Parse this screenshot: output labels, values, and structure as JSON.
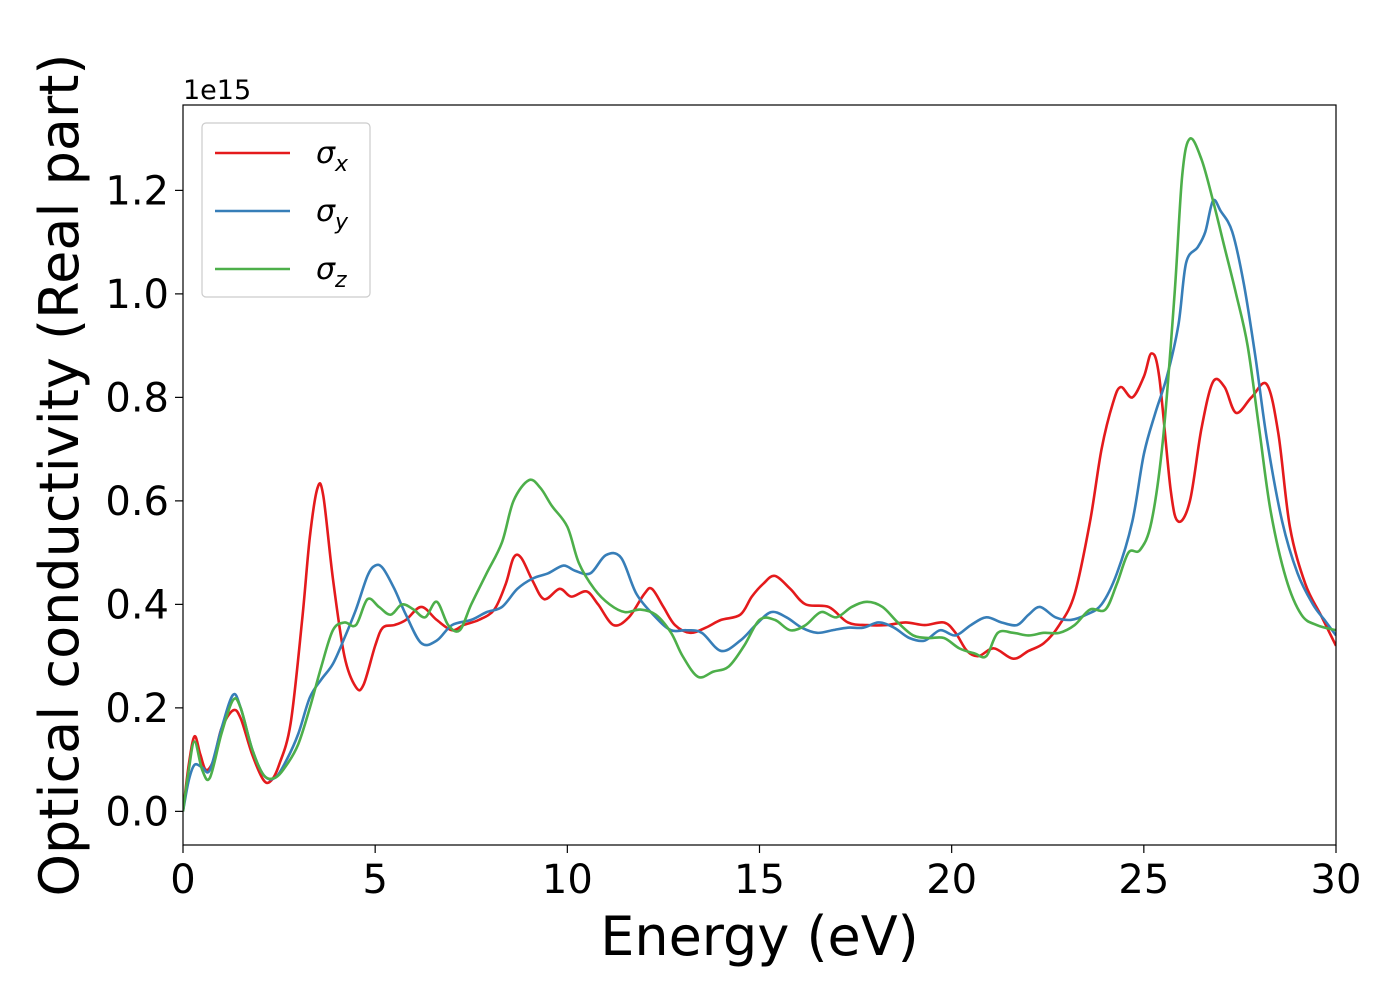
{
  "chart_data": {
    "type": "line",
    "xlabel": "Energy (eV)",
    "ylabel": "Optical conductivity (Real part)",
    "y_offset_label": "1e15",
    "xlim": [
      0,
      30
    ],
    "ylim": [
      -0.065,
      1.365
    ],
    "x_ticks": [
      0,
      5,
      10,
      15,
      20,
      25,
      30
    ],
    "x_tick_labels": [
      "0",
      "5",
      "10",
      "15",
      "20",
      "25",
      "30"
    ],
    "y_ticks": [
      0.0,
      0.2,
      0.4,
      0.6,
      0.8,
      1.0,
      1.2
    ],
    "y_tick_labels": [
      "0.0",
      "0.2",
      "0.4",
      "0.6",
      "0.8",
      "1.0",
      "1.2"
    ],
    "grid": false,
    "legend_position": "top-left",
    "series": [
      {
        "name": "σx",
        "legend_base": "σ",
        "legend_sub": "x",
        "color": "#e41a1c",
        "points": [
          [
            0,
            0
          ],
          [
            0.15,
            0.09
          ],
          [
            0.3,
            0.145
          ],
          [
            0.45,
            0.11
          ],
          [
            0.6,
            0.08
          ],
          [
            0.8,
            0.1
          ],
          [
            1.0,
            0.16
          ],
          [
            1.3,
            0.195
          ],
          [
            1.5,
            0.18
          ],
          [
            1.8,
            0.11
          ],
          [
            2.1,
            0.06
          ],
          [
            2.3,
            0.06
          ],
          [
            2.5,
            0.09
          ],
          [
            2.8,
            0.17
          ],
          [
            3.1,
            0.37
          ],
          [
            3.3,
            0.53
          ],
          [
            3.5,
            0.625
          ],
          [
            3.65,
            0.61
          ],
          [
            3.9,
            0.45
          ],
          [
            4.2,
            0.3
          ],
          [
            4.5,
            0.24
          ],
          [
            4.7,
            0.245
          ],
          [
            5.0,
            0.32
          ],
          [
            5.2,
            0.355
          ],
          [
            5.5,
            0.36
          ],
          [
            5.8,
            0.37
          ],
          [
            6.2,
            0.395
          ],
          [
            6.6,
            0.37
          ],
          [
            7.0,
            0.35
          ],
          [
            7.3,
            0.36
          ],
          [
            7.7,
            0.37
          ],
          [
            8.1,
            0.39
          ],
          [
            8.4,
            0.44
          ],
          [
            8.6,
            0.49
          ],
          [
            8.8,
            0.49
          ],
          [
            9.1,
            0.445
          ],
          [
            9.4,
            0.41
          ],
          [
            9.8,
            0.43
          ],
          [
            10.1,
            0.415
          ],
          [
            10.5,
            0.425
          ],
          [
            10.8,
            0.4
          ],
          [
            11.2,
            0.36
          ],
          [
            11.6,
            0.375
          ],
          [
            12.0,
            0.42
          ],
          [
            12.2,
            0.43
          ],
          [
            12.5,
            0.395
          ],
          [
            12.8,
            0.36
          ],
          [
            13.2,
            0.345
          ],
          [
            13.6,
            0.355
          ],
          [
            14.0,
            0.37
          ],
          [
            14.5,
            0.38
          ],
          [
            14.8,
            0.415
          ],
          [
            15.1,
            0.44
          ],
          [
            15.4,
            0.455
          ],
          [
            15.8,
            0.43
          ],
          [
            16.2,
            0.4
          ],
          [
            16.8,
            0.395
          ],
          [
            17.3,
            0.365
          ],
          [
            17.8,
            0.36
          ],
          [
            18.3,
            0.36
          ],
          [
            18.8,
            0.365
          ],
          [
            19.3,
            0.36
          ],
          [
            19.8,
            0.365
          ],
          [
            20.1,
            0.345
          ],
          [
            20.4,
            0.31
          ],
          [
            20.7,
            0.3
          ],
          [
            21.1,
            0.315
          ],
          [
            21.6,
            0.295
          ],
          [
            22.0,
            0.31
          ],
          [
            22.4,
            0.325
          ],
          [
            22.8,
            0.36
          ],
          [
            23.2,
            0.42
          ],
          [
            23.6,
            0.56
          ],
          [
            23.9,
            0.7
          ],
          [
            24.2,
            0.79
          ],
          [
            24.4,
            0.82
          ],
          [
            24.7,
            0.8
          ],
          [
            25.0,
            0.84
          ],
          [
            25.2,
            0.885
          ],
          [
            25.4,
            0.84
          ],
          [
            25.7,
            0.62
          ],
          [
            25.9,
            0.56
          ],
          [
            26.2,
            0.6
          ],
          [
            26.5,
            0.74
          ],
          [
            26.8,
            0.83
          ],
          [
            27.1,
            0.82
          ],
          [
            27.4,
            0.77
          ],
          [
            27.8,
            0.8
          ],
          [
            28.2,
            0.825
          ],
          [
            28.5,
            0.73
          ],
          [
            28.8,
            0.55
          ],
          [
            29.2,
            0.44
          ],
          [
            29.6,
            0.38
          ],
          [
            30.0,
            0.32
          ]
        ]
      },
      {
        "name": "σy",
        "legend_base": "σ",
        "legend_sub": "y",
        "color": "#377eb8",
        "points": [
          [
            0,
            0
          ],
          [
            0.15,
            0.06
          ],
          [
            0.3,
            0.09
          ],
          [
            0.5,
            0.085
          ],
          [
            0.7,
            0.08
          ],
          [
            1.0,
            0.16
          ],
          [
            1.3,
            0.225
          ],
          [
            1.5,
            0.2
          ],
          [
            1.8,
            0.12
          ],
          [
            2.1,
            0.07
          ],
          [
            2.4,
            0.065
          ],
          [
            2.7,
            0.1
          ],
          [
            3.0,
            0.15
          ],
          [
            3.3,
            0.22
          ],
          [
            3.6,
            0.255
          ],
          [
            3.9,
            0.285
          ],
          [
            4.2,
            0.335
          ],
          [
            4.5,
            0.39
          ],
          [
            4.8,
            0.455
          ],
          [
            5.0,
            0.475
          ],
          [
            5.2,
            0.47
          ],
          [
            5.5,
            0.43
          ],
          [
            5.8,
            0.38
          ],
          [
            6.2,
            0.325
          ],
          [
            6.6,
            0.33
          ],
          [
            7.0,
            0.36
          ],
          [
            7.5,
            0.37
          ],
          [
            7.9,
            0.385
          ],
          [
            8.3,
            0.395
          ],
          [
            8.7,
            0.43
          ],
          [
            9.1,
            0.45
          ],
          [
            9.5,
            0.46
          ],
          [
            9.9,
            0.475
          ],
          [
            10.2,
            0.465
          ],
          [
            10.6,
            0.46
          ],
          [
            11.0,
            0.495
          ],
          [
            11.4,
            0.49
          ],
          [
            11.8,
            0.42
          ],
          [
            12.3,
            0.375
          ],
          [
            12.7,
            0.35
          ],
          [
            13.1,
            0.35
          ],
          [
            13.5,
            0.345
          ],
          [
            14.0,
            0.31
          ],
          [
            14.5,
            0.33
          ],
          [
            14.9,
            0.36
          ],
          [
            15.3,
            0.385
          ],
          [
            15.7,
            0.375
          ],
          [
            16.1,
            0.355
          ],
          [
            16.5,
            0.345
          ],
          [
            16.9,
            0.35
          ],
          [
            17.3,
            0.355
          ],
          [
            17.7,
            0.355
          ],
          [
            18.1,
            0.365
          ],
          [
            18.5,
            0.355
          ],
          [
            18.9,
            0.335
          ],
          [
            19.3,
            0.33
          ],
          [
            19.7,
            0.35
          ],
          [
            20.1,
            0.34
          ],
          [
            20.5,
            0.36
          ],
          [
            20.9,
            0.375
          ],
          [
            21.3,
            0.365
          ],
          [
            21.7,
            0.36
          ],
          [
            22.0,
            0.38
          ],
          [
            22.3,
            0.395
          ],
          [
            22.7,
            0.375
          ],
          [
            23.1,
            0.37
          ],
          [
            23.5,
            0.38
          ],
          [
            23.9,
            0.4
          ],
          [
            24.3,
            0.46
          ],
          [
            24.7,
            0.56
          ],
          [
            25.0,
            0.69
          ],
          [
            25.3,
            0.77
          ],
          [
            25.6,
            0.84
          ],
          [
            25.9,
            0.94
          ],
          [
            26.1,
            1.06
          ],
          [
            26.4,
            1.09
          ],
          [
            26.6,
            1.12
          ],
          [
            26.8,
            1.18
          ],
          [
            27.0,
            1.16
          ],
          [
            27.3,
            1.12
          ],
          [
            27.6,
            1.02
          ],
          [
            27.9,
            0.88
          ],
          [
            28.2,
            0.72
          ],
          [
            28.6,
            0.56
          ],
          [
            29.0,
            0.46
          ],
          [
            29.4,
            0.4
          ],
          [
            29.7,
            0.37
          ],
          [
            30.0,
            0.34
          ]
        ]
      },
      {
        "name": "σz",
        "legend_base": "σ",
        "legend_sub": "z",
        "color": "#4daf4a",
        "points": [
          [
            0,
            0
          ],
          [
            0.15,
            0.08
          ],
          [
            0.3,
            0.135
          ],
          [
            0.5,
            0.08
          ],
          [
            0.7,
            0.065
          ],
          [
            1.0,
            0.15
          ],
          [
            1.3,
            0.215
          ],
          [
            1.5,
            0.2
          ],
          [
            1.8,
            0.12
          ],
          [
            2.1,
            0.07
          ],
          [
            2.4,
            0.065
          ],
          [
            2.7,
            0.09
          ],
          [
            3.0,
            0.13
          ],
          [
            3.3,
            0.2
          ],
          [
            3.6,
            0.28
          ],
          [
            3.9,
            0.35
          ],
          [
            4.2,
            0.365
          ],
          [
            4.5,
            0.36
          ],
          [
            4.8,
            0.41
          ],
          [
            5.1,
            0.395
          ],
          [
            5.4,
            0.38
          ],
          [
            5.7,
            0.4
          ],
          [
            6.0,
            0.39
          ],
          [
            6.3,
            0.375
          ],
          [
            6.6,
            0.405
          ],
          [
            6.9,
            0.36
          ],
          [
            7.2,
            0.35
          ],
          [
            7.5,
            0.4
          ],
          [
            7.9,
            0.46
          ],
          [
            8.3,
            0.52
          ],
          [
            8.6,
            0.6
          ],
          [
            9.0,
            0.64
          ],
          [
            9.3,
            0.625
          ],
          [
            9.6,
            0.59
          ],
          [
            10.0,
            0.55
          ],
          [
            10.3,
            0.48
          ],
          [
            10.7,
            0.43
          ],
          [
            11.1,
            0.4
          ],
          [
            11.5,
            0.385
          ],
          [
            11.9,
            0.39
          ],
          [
            12.3,
            0.38
          ],
          [
            12.7,
            0.345
          ],
          [
            13.0,
            0.3
          ],
          [
            13.4,
            0.26
          ],
          [
            13.8,
            0.27
          ],
          [
            14.2,
            0.28
          ],
          [
            14.6,
            0.32
          ],
          [
            15.0,
            0.37
          ],
          [
            15.4,
            0.37
          ],
          [
            15.8,
            0.35
          ],
          [
            16.2,
            0.36
          ],
          [
            16.6,
            0.385
          ],
          [
            17.0,
            0.375
          ],
          [
            17.4,
            0.395
          ],
          [
            17.8,
            0.405
          ],
          [
            18.2,
            0.395
          ],
          [
            18.6,
            0.365
          ],
          [
            19.0,
            0.34
          ],
          [
            19.4,
            0.335
          ],
          [
            19.8,
            0.335
          ],
          [
            20.2,
            0.315
          ],
          [
            20.6,
            0.305
          ],
          [
            20.9,
            0.3
          ],
          [
            21.2,
            0.345
          ],
          [
            21.6,
            0.345
          ],
          [
            22.0,
            0.34
          ],
          [
            22.4,
            0.345
          ],
          [
            22.8,
            0.345
          ],
          [
            23.2,
            0.36
          ],
          [
            23.6,
            0.39
          ],
          [
            24.0,
            0.39
          ],
          [
            24.3,
            0.44
          ],
          [
            24.6,
            0.5
          ],
          [
            24.9,
            0.505
          ],
          [
            25.2,
            0.56
          ],
          [
            25.5,
            0.72
          ],
          [
            25.8,
            1.0
          ],
          [
            26.0,
            1.23
          ],
          [
            26.2,
            1.3
          ],
          [
            26.5,
            1.26
          ],
          [
            26.8,
            1.18
          ],
          [
            27.1,
            1.09
          ],
          [
            27.4,
            1.0
          ],
          [
            27.7,
            0.9
          ],
          [
            28.0,
            0.74
          ],
          [
            28.3,
            0.58
          ],
          [
            28.7,
            0.45
          ],
          [
            29.1,
            0.38
          ],
          [
            29.5,
            0.36
          ],
          [
            30.0,
            0.35
          ]
        ]
      }
    ]
  }
}
